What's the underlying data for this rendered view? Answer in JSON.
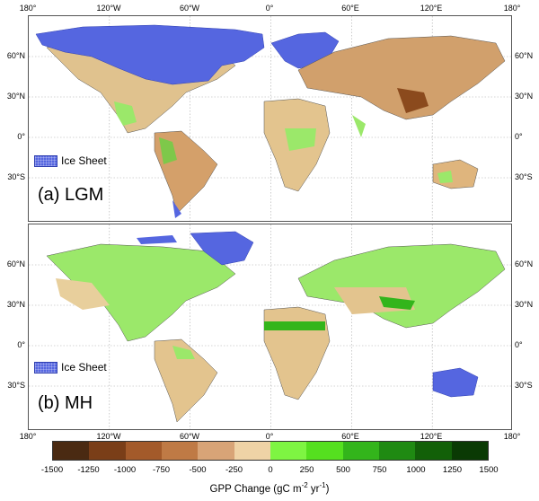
{
  "panels": [
    {
      "label": "(a) LGM",
      "legend": "Ice Sheet"
    },
    {
      "label": "(b) MH",
      "legend": "Ice Sheet"
    }
  ],
  "lon_ticks": [
    "180°",
    "120°W",
    "60°W",
    "0°",
    "60°E",
    "120°E",
    "180°"
  ],
  "lat_ticks": [
    "60°N",
    "30°N",
    "0°",
    "30°S"
  ],
  "colorbar": {
    "title": "GPP Change (gC m",
    "title_sup1": "-2",
    "title_mid": " yr",
    "title_sup2": "-1",
    "title_end": ")",
    "ticks": [
      "-1500",
      "-1250",
      "-1000",
      "-750",
      "-500",
      "-250",
      "0",
      "250",
      "500",
      "750",
      "1000",
      "1250",
      "1500"
    ],
    "colors": [
      "#4a2a12",
      "#7a3e18",
      "#a35a2a",
      "#bf7a45",
      "#d8a477",
      "#efd3a6",
      "#7ef542",
      "#55e01f",
      "#33b51b",
      "#1f8a12",
      "#126008",
      "#0a3a04"
    ]
  },
  "colors": {
    "ice": "#5566e0",
    "land_neutral": "#e8cf9c",
    "land_green": "#7ef542",
    "land_brown": "#b06a35"
  }
}
